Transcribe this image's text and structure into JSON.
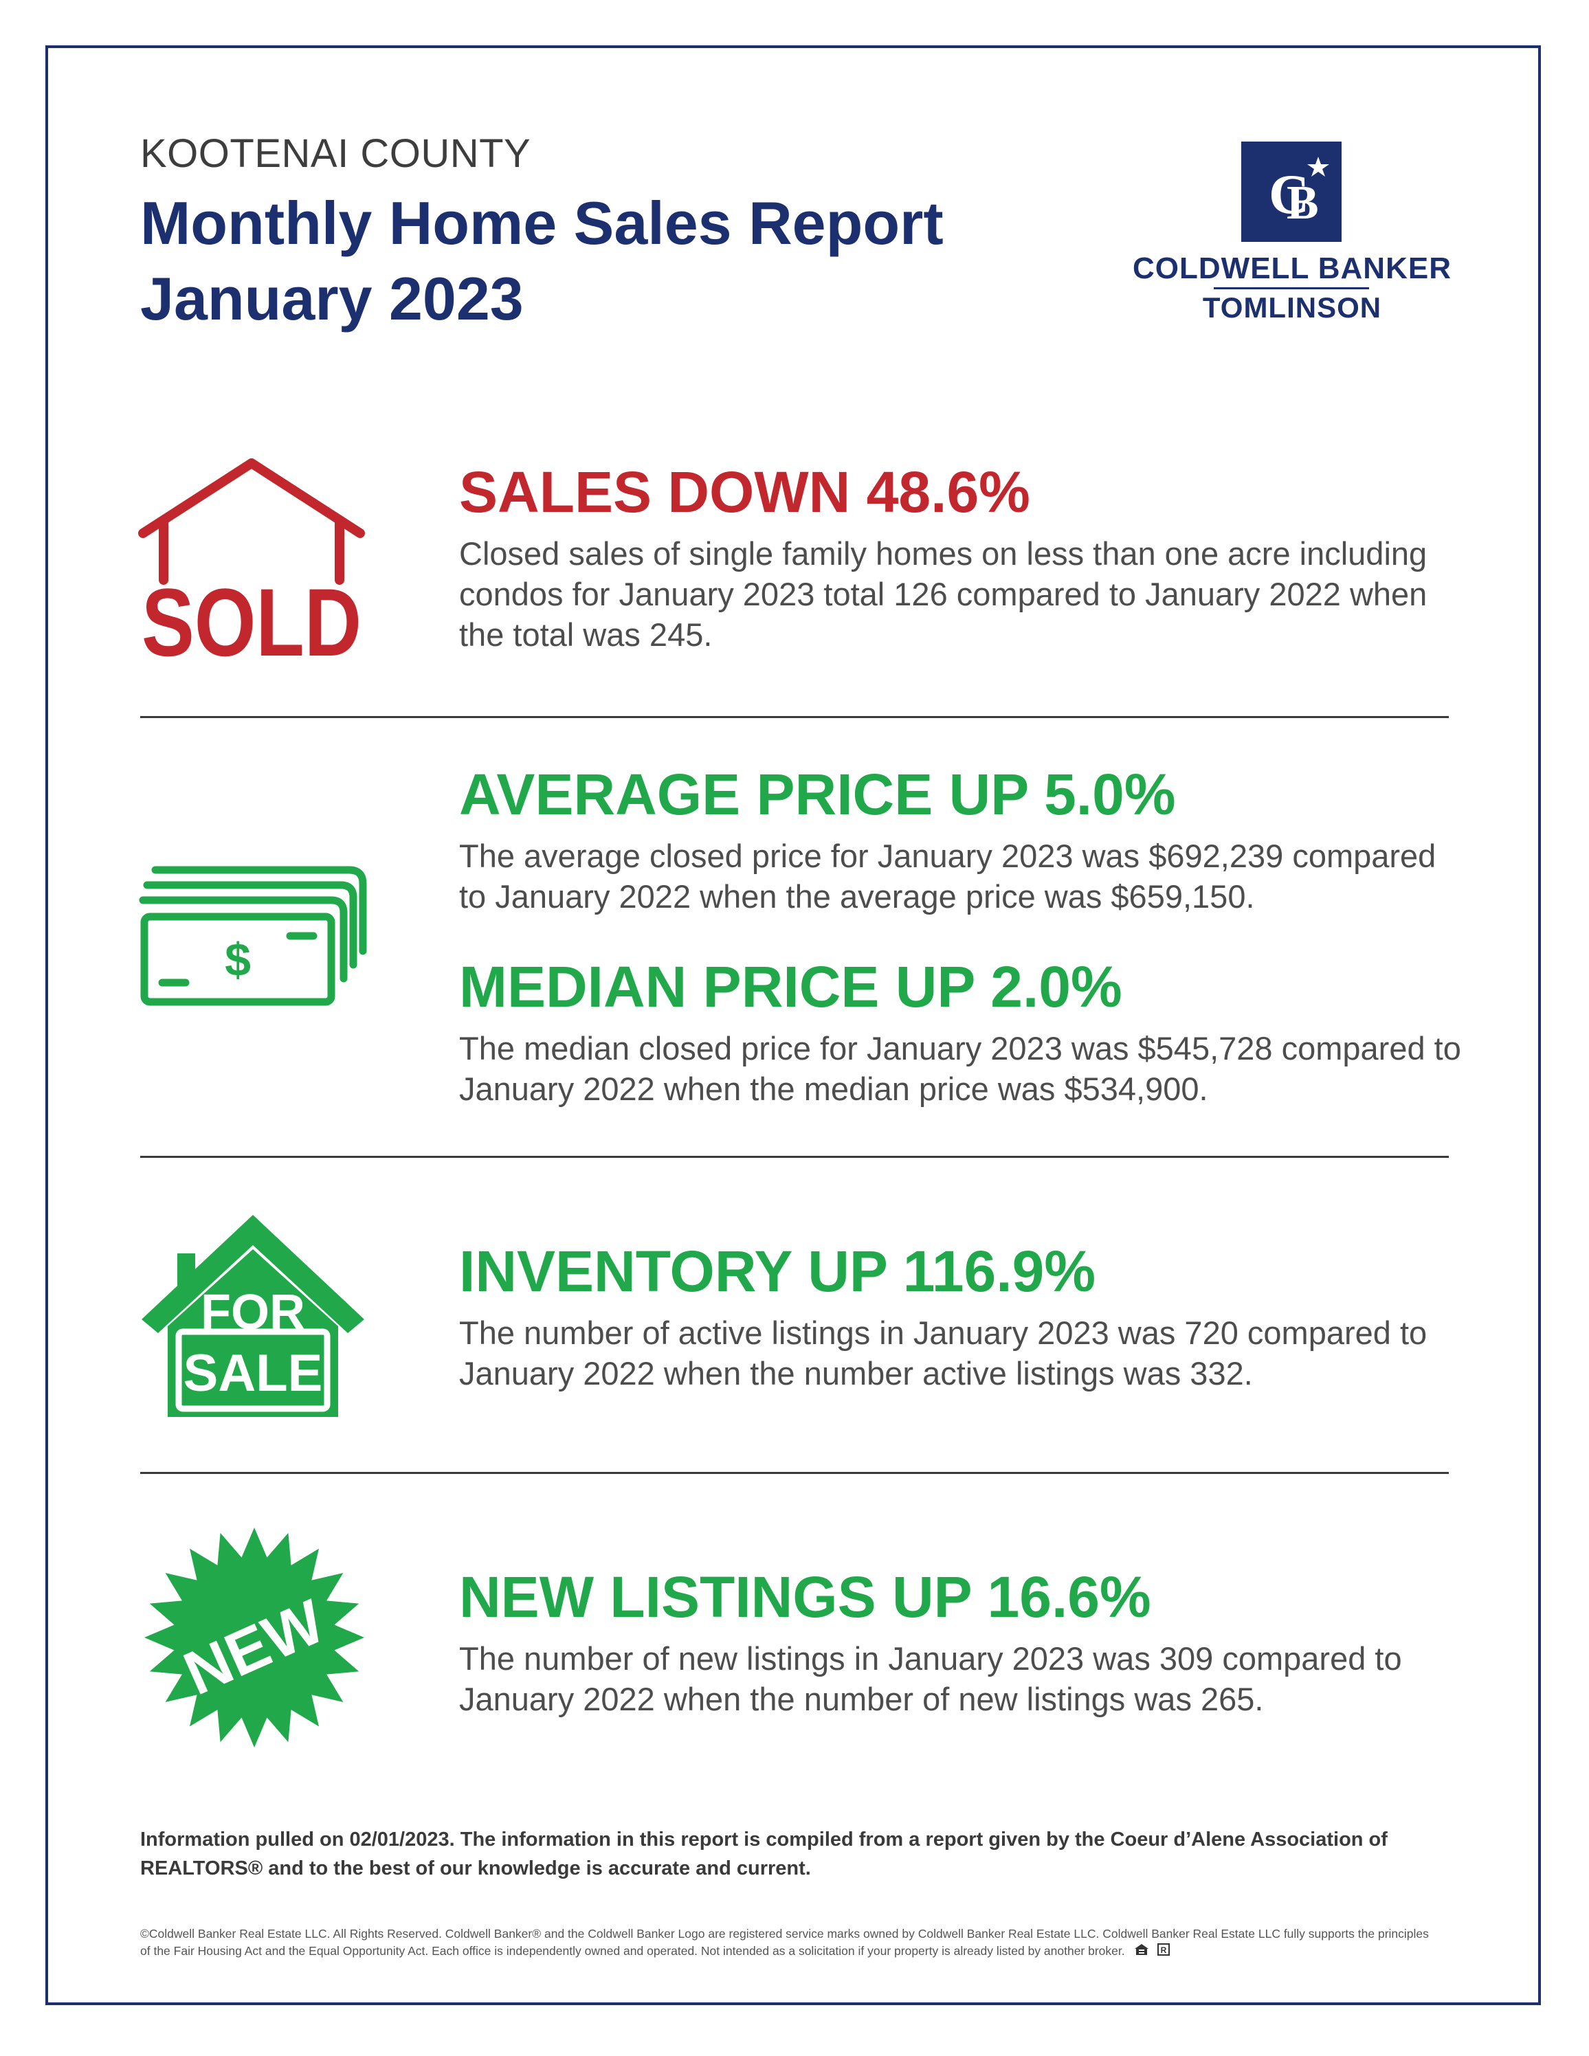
{
  "header": {
    "county": "KOOTENAI COUNTY",
    "title_line1": "Monthly Home Sales Report",
    "title_line2": "January 2023"
  },
  "logo": {
    "monogram": "CB",
    "name": "COLDWELL BANKER",
    "office": "TOMLINSON",
    "brand_color": "#1c2f6e"
  },
  "sections": {
    "sales": {
      "icon": "sold-house-icon",
      "icon_text": "SOLD",
      "headline": "SALES DOWN 48.6%",
      "body": "Closed sales of single family homes on less than one acre including condos for January 2023 total 126 compared to January 2022 when the total was 245.",
      "color": "#c1272d"
    },
    "average": {
      "icon": "money-stack-icon",
      "icon_text": "$",
      "headline": "AVERAGE PRICE UP 5.0%",
      "body": "The average closed price for January 2023 was $692,239 compared to January 2022 when the average price was $659,150.",
      "color": "#21a84a"
    },
    "median": {
      "headline": "MEDIAN PRICE UP 2.0%",
      "body": "The median closed price for January 2023 was $545,728 compared to January 2022 when the median price was $534,900.",
      "color": "#21a84a"
    },
    "inventory": {
      "icon": "for-sale-house-icon",
      "icon_text_line1": "FOR",
      "icon_text_line2": "SALE",
      "headline": "INVENTORY UP 116.9%",
      "body": "The number of active listings in January 2023 was 720 compared to January 2022 when the number active listings was 332.",
      "color": "#21a84a"
    },
    "new_listings": {
      "icon": "new-starburst-icon",
      "icon_text": "NEW",
      "headline": "NEW LISTINGS UP 16.6%",
      "body": "The number of new listings in January 2023 was 309 compared to January 2022 when the number of new listings was 265.",
      "color": "#21a84a"
    }
  },
  "footer": {
    "note": "Information pulled on 02/01/2023. The information in this report is compiled from a report given by the Coeur d’Alene Association of REALTORS® and to the best of our knowledge is accurate and current.",
    "legal": "©Coldwell Banker Real Estate LLC. All Rights Reserved. Coldwell Banker® and the Coldwell Banker Logo are registered service marks owned by Coldwell Banker Real Estate LLC. Coldwell Banker Real Estate LLC fully supports the principles of the Fair Housing Act and the Equal Opportunity Act. Each office is independently owned and operated. Not intended as a solicitation if your property is already listed by another broker."
  }
}
